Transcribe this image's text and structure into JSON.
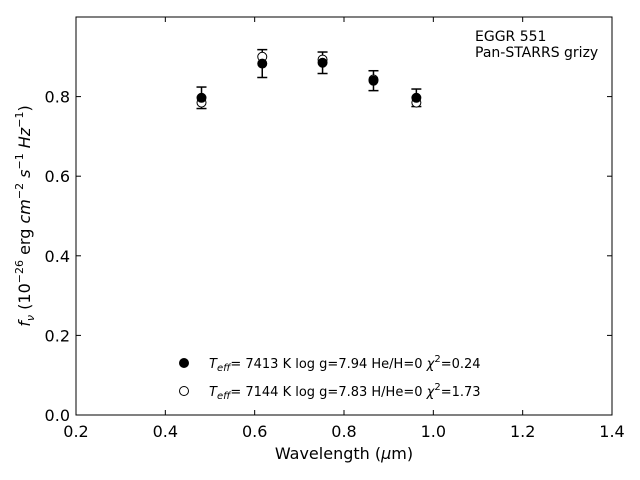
{
  "chart_data": {
    "type": "scatter",
    "annotation": [
      "EGGR 551",
      "Pan-STARRS grizy"
    ],
    "xlabel": {
      "pre": "Wavelength (",
      "greek": "μ",
      "post": "m)"
    },
    "ylabel": {
      "f": "f",
      "sub": "ν",
      "open": " (10",
      "exp1": "−26",
      "mid": " erg ",
      "cm": "cm",
      "exp2": "−2",
      "s": " s",
      "exp3": "−1",
      "hz": " Hz",
      "exp4": "−1",
      "close": ")"
    },
    "xlim": [
      0.2,
      1.4
    ],
    "ylim": [
      0.0,
      1.0
    ],
    "xticks": [
      "0.2",
      "0.4",
      "0.6",
      "0.8",
      "1.0",
      "1.2",
      "1.4"
    ],
    "yticks": [
      "0.0",
      "0.2",
      "0.4",
      "0.6",
      "0.8"
    ],
    "ytick_values": [
      0.0,
      0.2,
      0.4,
      0.6,
      0.8
    ],
    "xtick_values": [
      0.2,
      0.4,
      0.6,
      0.8,
      1.0,
      1.2,
      1.4
    ],
    "observed": [
      {
        "x": 0.481,
        "y": 0.797,
        "err": 0.027
      },
      {
        "x": 0.617,
        "y": 0.883,
        "err": 0.035
      },
      {
        "x": 0.752,
        "y": 0.885,
        "err": 0.027
      },
      {
        "x": 0.866,
        "y": 0.84,
        "err": 0.025
      },
      {
        "x": 0.962,
        "y": 0.797,
        "err": 0.022
      }
    ],
    "model_open": [
      {
        "x": 0.481,
        "y": 0.785
      },
      {
        "x": 0.617,
        "y": 0.9
      },
      {
        "x": 0.752,
        "y": 0.893
      },
      {
        "x": 0.866,
        "y": 0.843
      },
      {
        "x": 0.962,
        "y": 0.785
      }
    ],
    "legend": [
      {
        "marker": "filled",
        "tsym": "T",
        "tsub": "eff",
        "teq": "=  ",
        "text": "7413 K  log g=7.94  He/H=0  ",
        "chi": "χ",
        "chiexp": "2",
        "chival": "=0.24"
      },
      {
        "marker": "open",
        "tsym": "T",
        "tsub": "eff",
        "teq": "=  ",
        "text": "7144 K  log g=7.83  H/He=0  ",
        "chi": "χ",
        "chiexp": "2",
        "chival": "=1.73"
      }
    ]
  }
}
